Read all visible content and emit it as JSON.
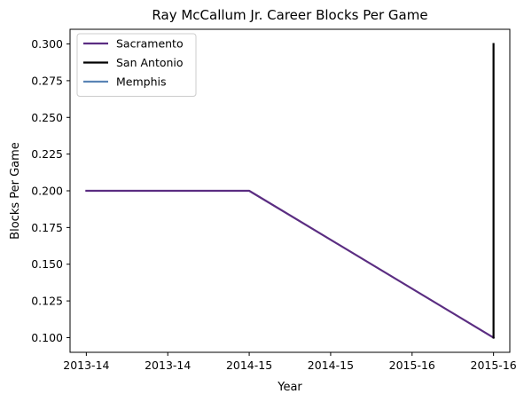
{
  "chart_data": {
    "type": "line",
    "title": "Ray McCallum Jr. Career Blocks Per Game",
    "xlabel": "Year",
    "ylabel": "Blocks Per Game",
    "x_tick_labels": [
      "2013-14",
      "2013-14",
      "2014-15",
      "2014-15",
      "2015-16",
      "2015-16"
    ],
    "ylim": [
      0.09,
      0.31
    ],
    "y_ticks": [
      "0.100",
      "0.125",
      "0.150",
      "0.175",
      "0.200",
      "0.225",
      "0.250",
      "0.275",
      "0.300"
    ],
    "grid": false,
    "legend_position": "top-left",
    "series": [
      {
        "name": "Sacramento",
        "color": "#5b2d82",
        "x": [
          0,
          2,
          5
        ],
        "y": [
          0.2,
          0.2,
          0.1
        ]
      },
      {
        "name": "San Antonio",
        "color": "#000000",
        "x": [
          5,
          5
        ],
        "y": [
          0.1,
          0.3
        ]
      },
      {
        "name": "Memphis",
        "color": "#5a84b5",
        "x": [],
        "y": []
      }
    ]
  }
}
